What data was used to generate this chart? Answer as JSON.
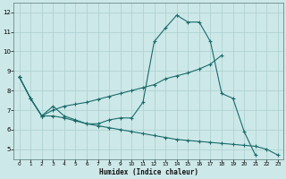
{
  "xlabel": "Humidex (Indice chaleur)",
  "background_color": "#cde8e8",
  "grid_color": "#aacfcf",
  "line_color": "#1a6b6b",
  "xlim": [
    -0.5,
    23.5
  ],
  "ylim": [
    4.5,
    12.5
  ],
  "xticks": [
    0,
    1,
    2,
    3,
    4,
    5,
    6,
    7,
    8,
    9,
    10,
    11,
    12,
    13,
    14,
    15,
    16,
    17,
    18,
    19,
    20,
    21,
    22,
    23
  ],
  "yticks": [
    5,
    6,
    7,
    8,
    9,
    10,
    11,
    12
  ],
  "line1_x": [
    0,
    1,
    2,
    3,
    4,
    5,
    6,
    7,
    8,
    9,
    10,
    11,
    12,
    13,
    14,
    15,
    16,
    17,
    18,
    19,
    20,
    21,
    22,
    23
  ],
  "line1_y": [
    8.7,
    7.6,
    6.7,
    7.2,
    6.7,
    6.5,
    6.3,
    6.3,
    6.5,
    6.6,
    6.6,
    7.4,
    10.5,
    11.2,
    11.85,
    11.5,
    11.5,
    10.5,
    7.85,
    7.6,
    5.9,
    4.7,
    null,
    null
  ],
  "line2_x": [
    0,
    1,
    2,
    3,
    4,
    5,
    6,
    7,
    8,
    9,
    10,
    11,
    12,
    13,
    14,
    15,
    16,
    17,
    18,
    19,
    20,
    21,
    22,
    23
  ],
  "line2_y": [
    8.7,
    7.6,
    6.7,
    7.0,
    7.2,
    7.3,
    7.4,
    7.55,
    7.7,
    7.85,
    8.0,
    8.15,
    8.3,
    8.6,
    8.75,
    8.9,
    9.1,
    9.35,
    9.8,
    null,
    null,
    null,
    null,
    null
  ],
  "line3_x": [
    0,
    1,
    2,
    3,
    4,
    5,
    6,
    7,
    8,
    9,
    10,
    11,
    12,
    13,
    14,
    15,
    16,
    17,
    18,
    19,
    20,
    21,
    22,
    23
  ],
  "line3_y": [
    8.7,
    7.6,
    6.7,
    6.7,
    6.6,
    6.45,
    6.3,
    6.2,
    6.1,
    6.0,
    5.9,
    5.8,
    5.7,
    5.6,
    5.5,
    5.45,
    5.4,
    5.35,
    5.3,
    5.25,
    5.2,
    5.15,
    5.0,
    4.7
  ]
}
